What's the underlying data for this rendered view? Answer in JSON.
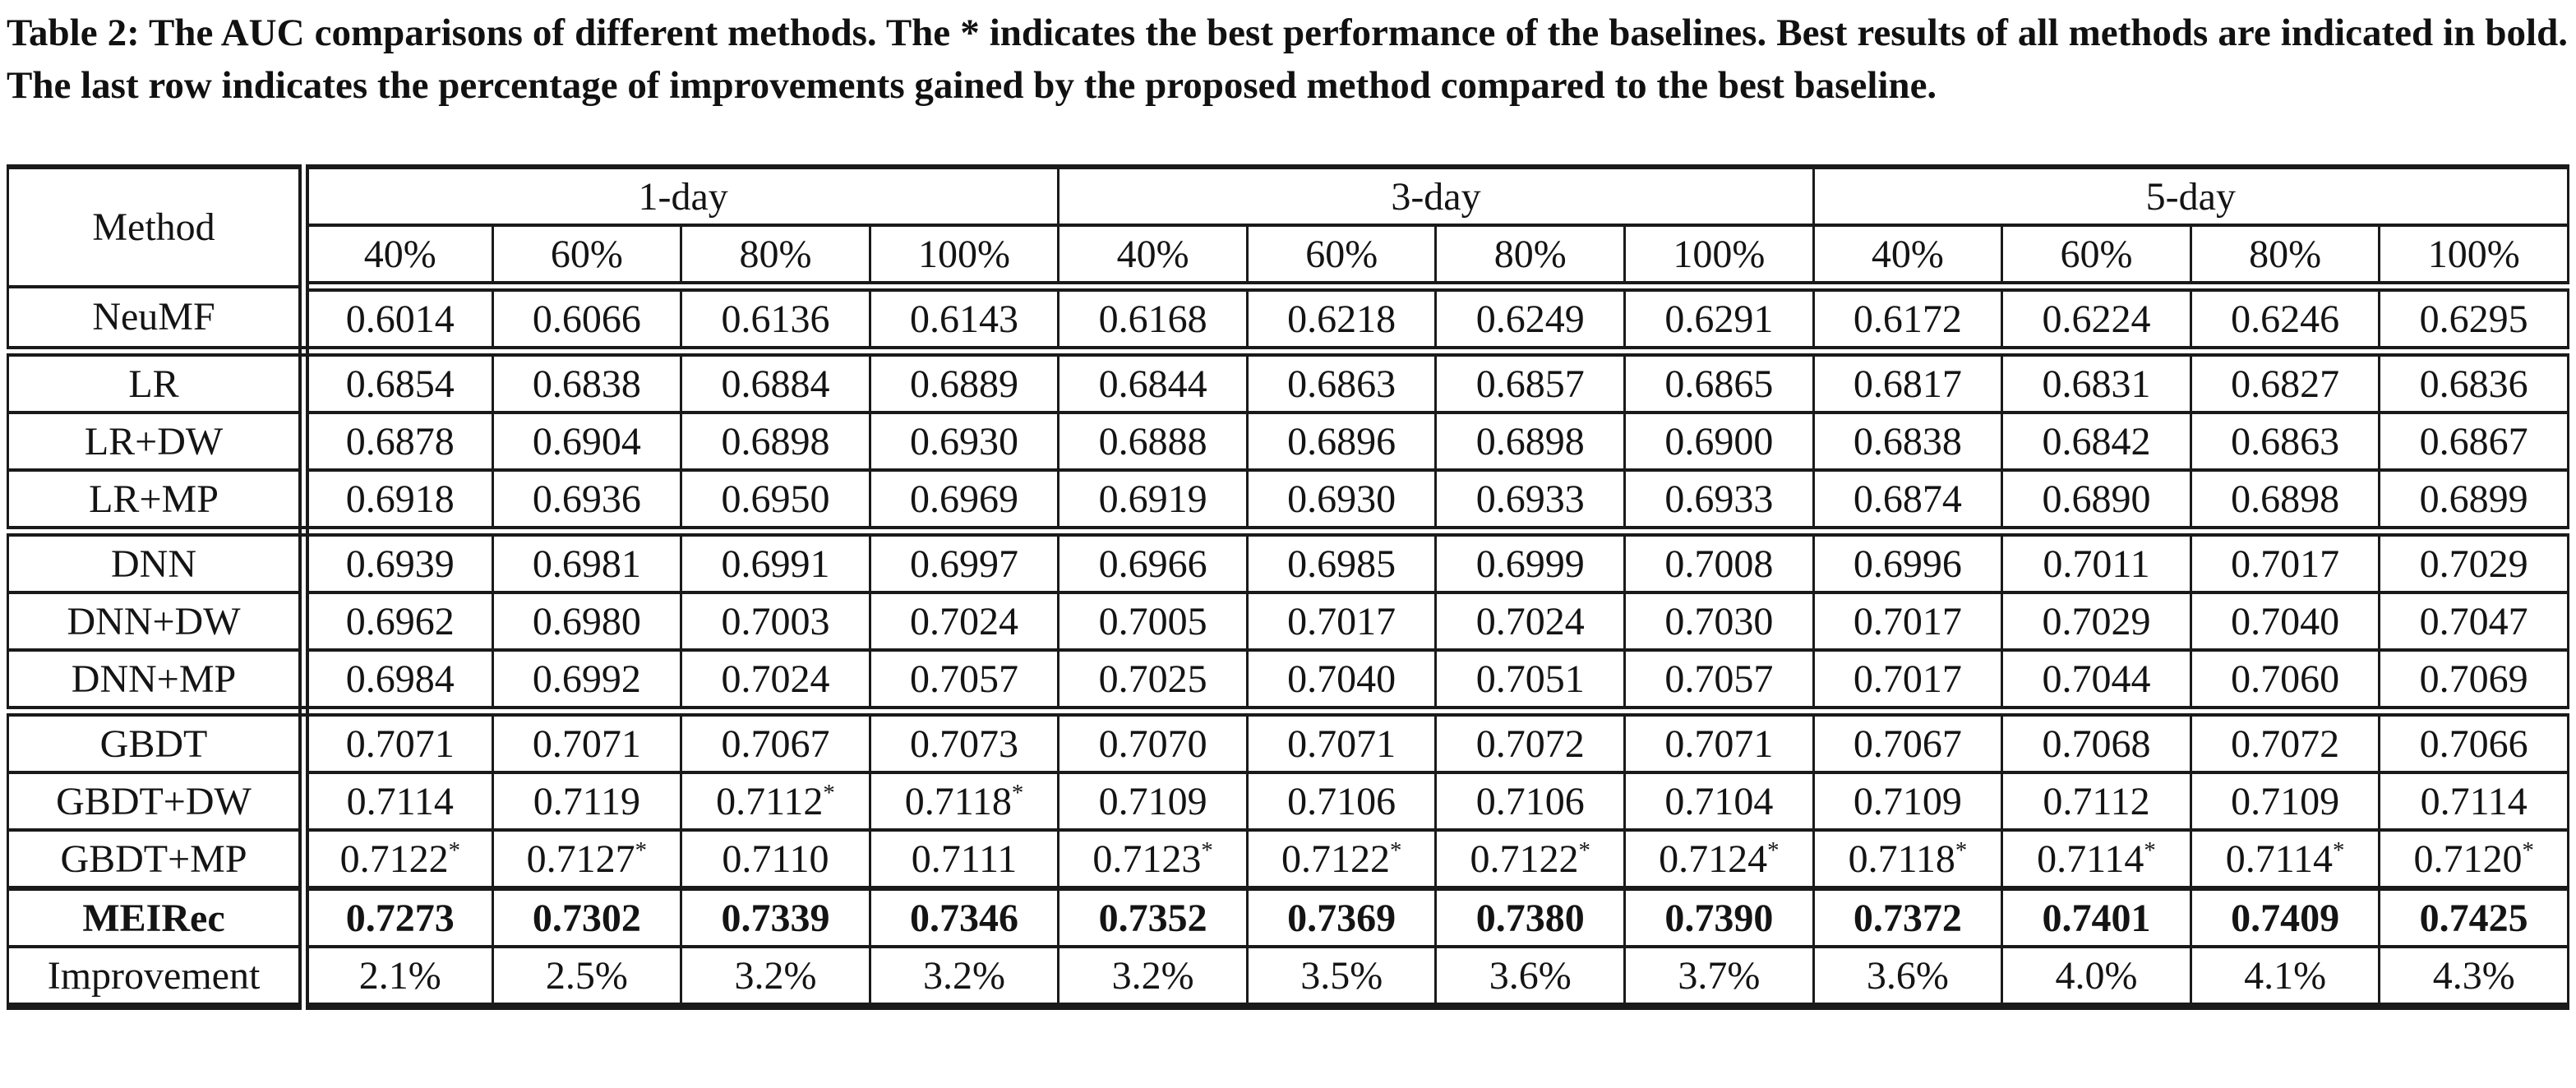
{
  "caption": "Table 2: The AUC comparisons of different methods. The * indicates the best performance of the baselines. Best results of all methods are indicated in bold. The last row indicates the percentage of improvements gained by the proposed method compared to the best baseline.",
  "table": {
    "method_header": "Method",
    "day_headers": [
      "1-day",
      "3-day",
      "5-day"
    ],
    "percent_headers": [
      "40%",
      "60%",
      "80%",
      "100%"
    ],
    "rows": [
      {
        "method": "NeuMF",
        "bold": false,
        "rule_below": "double",
        "values": [
          "0.6014",
          "0.6066",
          "0.6136",
          "0.6143",
          "0.6168",
          "0.6218",
          "0.6249",
          "0.6291",
          "0.6172",
          "0.6224",
          "0.6246",
          "0.6295"
        ]
      },
      {
        "method": "LR",
        "bold": false,
        "rule_below": "single",
        "values": [
          "0.6854",
          "0.6838",
          "0.6884",
          "0.6889",
          "0.6844",
          "0.6863",
          "0.6857",
          "0.6865",
          "0.6817",
          "0.6831",
          "0.6827",
          "0.6836"
        ]
      },
      {
        "method": "LR+DW",
        "bold": false,
        "rule_below": "single",
        "values": [
          "0.6878",
          "0.6904",
          "0.6898",
          "0.6930",
          "0.6888",
          "0.6896",
          "0.6898",
          "0.6900",
          "0.6838",
          "0.6842",
          "0.6863",
          "0.6867"
        ]
      },
      {
        "method": "LR+MP",
        "bold": false,
        "rule_below": "double",
        "values": [
          "0.6918",
          "0.6936",
          "0.6950",
          "0.6969",
          "0.6919",
          "0.6930",
          "0.6933",
          "0.6933",
          "0.6874",
          "0.6890",
          "0.6898",
          "0.6899"
        ]
      },
      {
        "method": "DNN",
        "bold": false,
        "rule_below": "single",
        "values": [
          "0.6939",
          "0.6981",
          "0.6991",
          "0.6997",
          "0.6966",
          "0.6985",
          "0.6999",
          "0.7008",
          "0.6996",
          "0.7011",
          "0.7017",
          "0.7029"
        ]
      },
      {
        "method": "DNN+DW",
        "bold": false,
        "rule_below": "single",
        "values": [
          "0.6962",
          "0.6980",
          "0.7003",
          "0.7024",
          "0.7005",
          "0.7017",
          "0.7024",
          "0.7030",
          "0.7017",
          "0.7029",
          "0.7040",
          "0.7047"
        ]
      },
      {
        "method": "DNN+MP",
        "bold": false,
        "rule_below": "double",
        "values": [
          "0.6984",
          "0.6992",
          "0.7024",
          "0.7057",
          "0.7025",
          "0.7040",
          "0.7051",
          "0.7057",
          "0.7017",
          "0.7044",
          "0.7060",
          "0.7069"
        ]
      },
      {
        "method": "GBDT",
        "bold": false,
        "rule_below": "single",
        "values": [
          "0.7071",
          "0.7071",
          "0.7067",
          "0.7073",
          "0.7070",
          "0.7071",
          "0.7072",
          "0.7071",
          "0.7067",
          "0.7068",
          "0.7072",
          "0.7066"
        ]
      },
      {
        "method": "GBDT+DW",
        "bold": false,
        "rule_below": "single",
        "values": [
          "0.7114",
          "0.7119",
          "0.7112*",
          "0.7118*",
          "0.7109",
          "0.7106",
          "0.7106",
          "0.7104",
          "0.7109",
          "0.7112",
          "0.7109",
          "0.7114"
        ]
      },
      {
        "method": "GBDT+MP",
        "bold": false,
        "rule_below": "thick",
        "values": [
          "0.7122*",
          "0.7127*",
          "0.7110",
          "0.7111",
          "0.7123*",
          "0.7122*",
          "0.7122*",
          "0.7124*",
          "0.7118*",
          "0.7114*",
          "0.7114*",
          "0.7120*"
        ]
      },
      {
        "method": "MEIRec",
        "bold": true,
        "rule_below": "single",
        "values": [
          "0.7273",
          "0.7302",
          "0.7339",
          "0.7346",
          "0.7352",
          "0.7369",
          "0.7380",
          "0.7390",
          "0.7372",
          "0.7401",
          "0.7409",
          "0.7425"
        ]
      },
      {
        "method": "Improvement",
        "bold": false,
        "rule_below": "none",
        "values": [
          "2.1%",
          "2.5%",
          "3.2%",
          "3.2%",
          "3.2%",
          "3.5%",
          "3.6%",
          "3.7%",
          "3.6%",
          "4.0%",
          "4.1%",
          "4.3%"
        ]
      }
    ]
  }
}
